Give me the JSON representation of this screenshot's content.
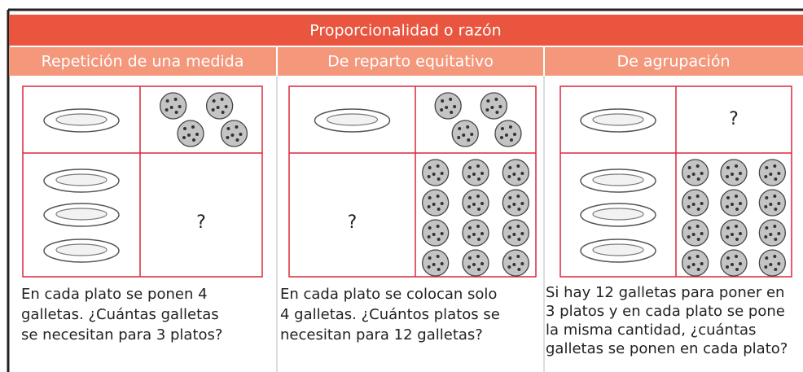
{
  "header": {
    "title": "Proporcionalidad o razón"
  },
  "columns": [
    {
      "header": "Repetición de una medida",
      "question_mark": "?",
      "text": [
        "En cada plato se ponen 4",
        "galletas. ¿Cuántas galletas",
        "se necesitan para 3 platos?"
      ]
    },
    {
      "header": "De reparto equitativo",
      "question_mark": "?",
      "text": [
        "En cada plato se colocan solo",
        "4 galletas. ¿Cuántos platos se",
        "necesitan para 12 galletas?"
      ]
    },
    {
      "header": "De agrupación",
      "question_mark": "?",
      "text": [
        "Si hay 12 galletas para poner en",
        "3 platos y en cada plato se pone",
        "la misma cantidad, ¿cuántas",
        "galletas se ponen en cada plato?"
      ]
    }
  ]
}
